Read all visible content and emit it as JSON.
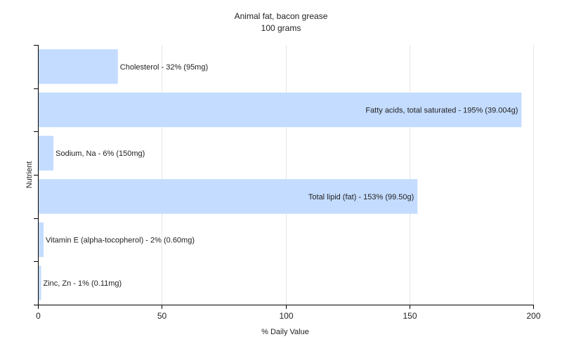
{
  "chart_data": {
    "type": "bar",
    "orientation": "horizontal",
    "title": "Animal fat, bacon grease",
    "subtitle": "100 grams",
    "xlabel": "% Daily Value",
    "ylabel": "Nutrient",
    "xlim": [
      0,
      200
    ],
    "xticks": [
      0,
      50,
      100,
      150,
      200
    ],
    "grid": "vertical",
    "bar_color": "#c4dcff",
    "categories": [
      "Cholesterol",
      "Fatty acids, total saturated",
      "Sodium, Na",
      "Total lipid (fat)",
      "Vitamin E (alpha-tocopherol)",
      "Zinc, Zn"
    ],
    "values": [
      32,
      195,
      6,
      153,
      2,
      1
    ],
    "labels": [
      "Cholesterol - 32% (95mg)",
      "Fatty acids, total saturated - 195% (39.004g)",
      "Sodium, Na - 6% (150mg)",
      "Total lipid (fat) - 153% (99.50g)",
      "Vitamin E (alpha-tocopherol) - 2% (0.60mg)",
      "Zinc, Zn - 1% (0.11mg)"
    ]
  }
}
